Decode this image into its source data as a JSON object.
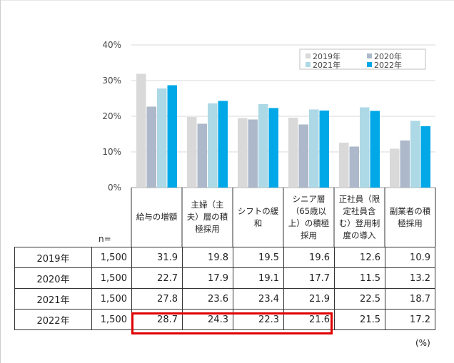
{
  "chart_data": {
    "type": "bar",
    "y_ticks": [
      "0%",
      "10%",
      "20%",
      "30%",
      "40%"
    ],
    "ylim": [
      0,
      40
    ],
    "unit": "(%)",
    "n_label": "n=",
    "categories": [
      "給与の増額",
      "主婦（主夫）層の積極採用",
      "シフトの緩和",
      "シニア層（65歳以上）の積極採用",
      "正社員（限定社員含む）登用制度の導入",
      "副業者の積極採用"
    ],
    "category_lines": [
      [
        "給与の増額"
      ],
      [
        "主婦（主",
        "夫）層の積",
        "極採用"
      ],
      [
        "シフトの緩和"
      ],
      [
        "シニア層",
        "（65歳以",
        "上）の積極",
        "採用"
      ],
      [
        "正社員（限",
        "定社員含",
        "む）登用制",
        "度の導入"
      ],
      [
        "副業者の積",
        "極採用"
      ]
    ],
    "series": [
      {
        "name": "2019年",
        "n": "1,500",
        "color": "#d9d9d9",
        "values": [
          31.9,
          19.8,
          19.5,
          19.6,
          12.6,
          10.9
        ]
      },
      {
        "name": "2020年",
        "n": "1,500",
        "color": "#adb9ca",
        "values": [
          22.7,
          17.9,
          19.1,
          17.7,
          11.5,
          13.2
        ]
      },
      {
        "name": "2021年",
        "n": "1,500",
        "color": "#add8e6",
        "values": [
          27.8,
          23.6,
          23.4,
          21.9,
          22.5,
          18.7
        ]
      },
      {
        "name": "2022年",
        "n": "1,500",
        "color": "#00a8e8",
        "values": [
          28.7,
          24.3,
          22.3,
          21.6,
          21.5,
          17.2
        ]
      }
    ],
    "highlight": {
      "row": "2022年",
      "from_category": 0,
      "to_category": 3,
      "color": "#e00000"
    }
  }
}
